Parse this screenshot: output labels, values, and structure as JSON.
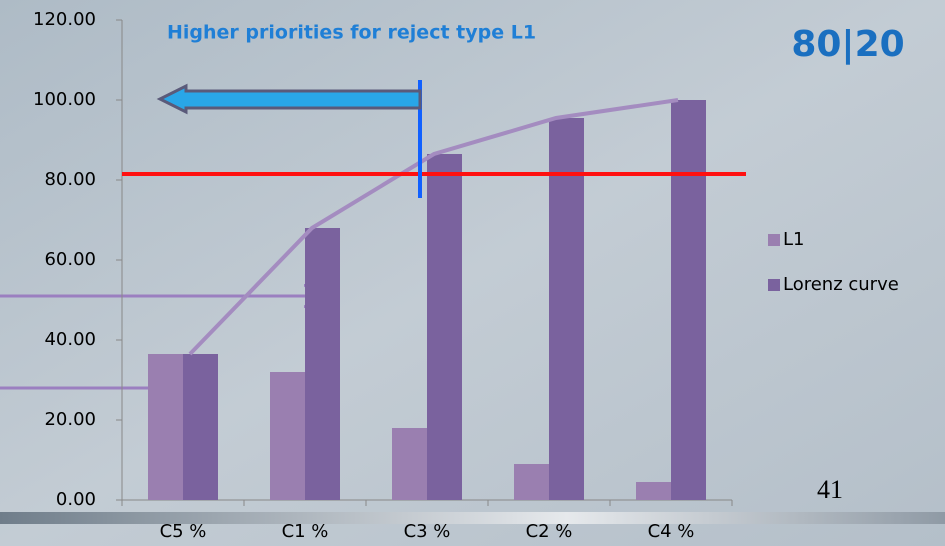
{
  "chart_data": {
    "type": "bar",
    "title": "Higher priorities for reject type L1",
    "badge": "80|20",
    "page_number": "41",
    "categories": [
      "C5 %",
      "C1 %",
      "C3 %",
      "C2 %",
      "C4 %"
    ],
    "series": [
      {
        "name": "L1",
        "color": "#9a7fb0",
        "values": [
          36.5,
          32,
          18,
          9,
          4.5
        ]
      },
      {
        "name": "Lorenz curve",
        "color": "#7a629e",
        "values": [
          36.5,
          68,
          86.5,
          95.5,
          100
        ]
      }
    ],
    "line_color": "#a48cc0",
    "reference_line": 81.5,
    "reference_color": "#ff1010",
    "ylim": [
      0,
      120
    ],
    "yticks": [
      {
        "value": 0,
        "label": "0.00"
      },
      {
        "value": 20,
        "label": "20.00"
      },
      {
        "value": 40,
        "label": "40.00"
      },
      {
        "value": 60,
        "label": "60.00"
      },
      {
        "value": 80,
        "label": "80.00"
      },
      {
        "value": 100,
        "label": "100.00"
      },
      {
        "value": 120,
        "label": "120.00"
      }
    ],
    "legend": "right"
  }
}
